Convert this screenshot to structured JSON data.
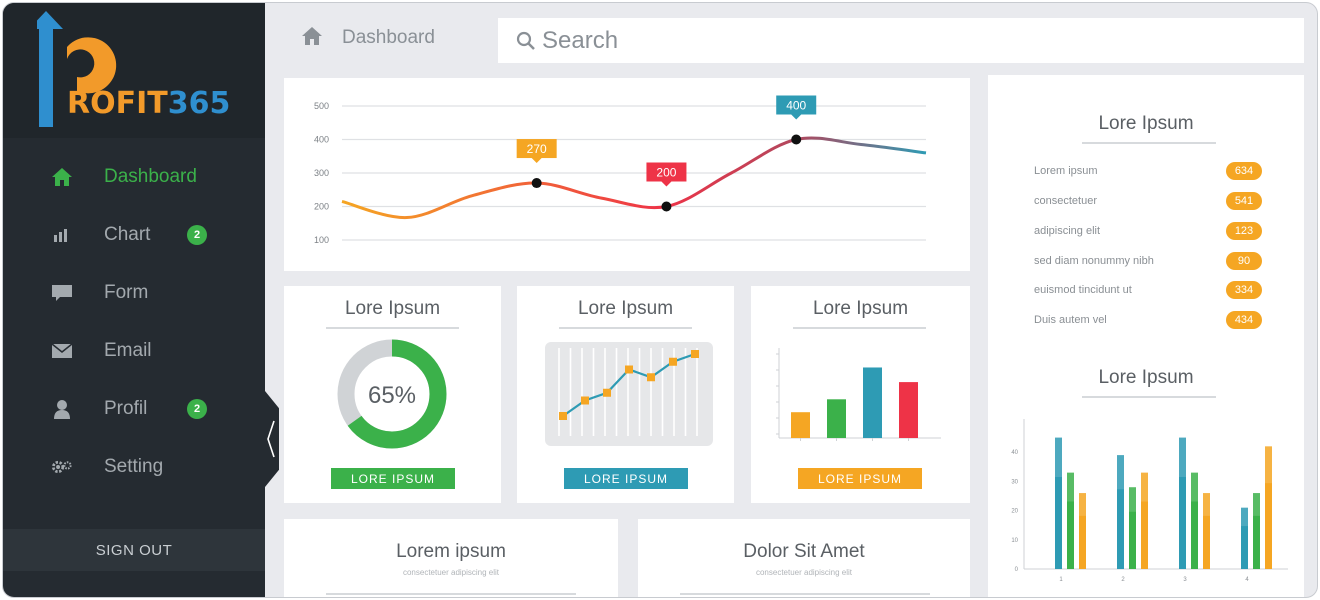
{
  "brand": {
    "logo_text": "ROFIT",
    "logo_number": "365"
  },
  "sidebar": {
    "items": [
      {
        "label": "Dashboard",
        "icon": "home-icon",
        "active": true
      },
      {
        "label": "Chart",
        "icon": "bar-chart-icon",
        "badge": "2"
      },
      {
        "label": "Form",
        "icon": "chat-bubble-icon"
      },
      {
        "label": "Email",
        "icon": "envelope-icon"
      },
      {
        "label": "Profil",
        "icon": "user-icon",
        "badge": "2"
      },
      {
        "label": "Setting",
        "icon": "gears-icon"
      }
    ],
    "sign_out": "SIGN OUT"
  },
  "header": {
    "breadcrumb": "Dashboard",
    "search_placeholder": "Search"
  },
  "colors": {
    "sidebar": "#252b31",
    "green": "#3bb14a",
    "orange": "#f5a623",
    "teal": "#2e9bb4",
    "red": "#ee3347",
    "background": "#e9eaee"
  },
  "line_chart": {
    "chart_data": {
      "type": "line",
      "x": [
        0,
        1,
        2,
        3,
        4,
        5,
        6,
        7,
        8,
        9
      ],
      "y": [
        215,
        167,
        232,
        270,
        225,
        200,
        300,
        400,
        385,
        360
      ],
      "yticks": [
        "500",
        "400",
        "300",
        "200",
        "100"
      ],
      "ylim": [
        100,
        500
      ],
      "callouts": [
        {
          "label": "270",
          "index": 3,
          "color": "#f5a623"
        },
        {
          "label": "200",
          "index": 5,
          "color": "#ee3347"
        },
        {
          "label": "400",
          "index": 7,
          "color": "#2e9bb4"
        }
      ]
    }
  },
  "cards": {
    "donut": {
      "title": "Lore Ipsum",
      "percent_label": "65%",
      "percent": 65,
      "button": "LORE IPSUM"
    },
    "mini_line": {
      "title": "Lore Ipsum",
      "button": "LORE IPSUM",
      "chart_data": {
        "type": "line",
        "values": [
          2,
          4,
          5,
          8,
          7,
          9,
          10
        ]
      }
    },
    "mini_bar": {
      "title": "Lore Ipsum",
      "button": "LORE IPSUM",
      "chart_data": {
        "type": "bar",
        "values": [
          30,
          45,
          82,
          65
        ],
        "colors": [
          "#f5a623",
          "#3bb14a",
          "#2e9bb4",
          "#ee3347"
        ]
      }
    }
  },
  "right_panel": {
    "list_title": "Lore Ipsum",
    "list": [
      {
        "label": "Lorem ipsum",
        "value": "634"
      },
      {
        "label": "consectetuer",
        "value": "541"
      },
      {
        "label": "adipiscing elit",
        "value": "123"
      },
      {
        "label": "sed diam nonummy nibh",
        "value": "90"
      },
      {
        "label": "euismod tincidunt ut",
        "value": "334"
      },
      {
        "label": "Duis autem vel",
        "value": "434"
      }
    ],
    "chart_title": "Lore Ipsum",
    "chart_data": {
      "type": "bar",
      "categories": [
        "1",
        "2",
        "3",
        "4"
      ],
      "yticks": [
        "40",
        "30",
        "20",
        "10",
        "0"
      ],
      "ylim": [
        0,
        50
      ],
      "series": [
        {
          "color": "#2e9bb4",
          "values": [
            45,
            39,
            45,
            21
          ]
        },
        {
          "color": "#3bb14a",
          "values": [
            33,
            28,
            33,
            26
          ]
        },
        {
          "color": "#f5a623",
          "values": [
            26,
            33,
            26,
            42
          ]
        }
      ]
    }
  },
  "bottom_cards": [
    {
      "title": "Lorem ipsum",
      "subtitle": "consectetuer adipiscing elit"
    },
    {
      "title": "Dolor Sit Amet",
      "subtitle": "consectetuer adipiscing elit"
    }
  ]
}
